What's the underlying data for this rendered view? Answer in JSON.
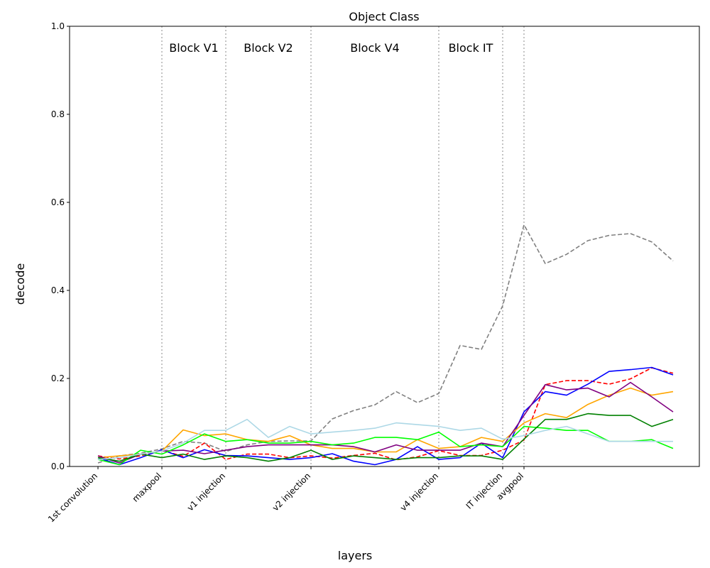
{
  "chart_data": {
    "type": "line",
    "title": "Object Class",
    "xlabel": "layers",
    "ylabel": "decode",
    "ylim": [
      0,
      1
    ],
    "y_ticks": [
      "0.0",
      "0.2",
      "0.4",
      "0.6",
      "0.8",
      "1.0"
    ],
    "y_tick_values": [
      0,
      0.2,
      0.4,
      0.6,
      0.8,
      1.0
    ],
    "x_count": 28,
    "x_tick_labels": [
      {
        "index": 0,
        "label": "1st convolution"
      },
      {
        "index": 3,
        "label": "maxpool"
      },
      {
        "index": 6,
        "label": "v1 injection"
      },
      {
        "index": 10,
        "label": "v2 injection"
      },
      {
        "index": 16,
        "label": "v4 injection"
      },
      {
        "index": 19,
        "label": "IT injection"
      },
      {
        "index": 20,
        "label": "avgpool"
      }
    ],
    "block_dividers": [
      3,
      6,
      10,
      16,
      19,
      20
    ],
    "block_labels": [
      {
        "label": "Block V1",
        "index": 4.5
      },
      {
        "label": "Block V2",
        "index": 8.0
      },
      {
        "label": "Block V4",
        "index": 13.0
      },
      {
        "label": "Block IT",
        "index": 17.5
      }
    ],
    "grid": false,
    "series": [
      {
        "color": "#808080",
        "dashed": true,
        "values": [
          0.008,
          0.024,
          0.03,
          0.04,
          0.057,
          0.053,
          0.034,
          0.049,
          0.057,
          0.058,
          0.058,
          0.108,
          0.127,
          0.14,
          0.17,
          0.145,
          0.166,
          0.275,
          0.266,
          0.365,
          0.549,
          0.461,
          0.482,
          0.513,
          0.525,
          0.529,
          0.51,
          0.467
        ]
      },
      {
        "color": "#ff0000",
        "dashed": true,
        "values": [
          0.024,
          0.017,
          0.024,
          0.037,
          0.023,
          0.053,
          0.016,
          0.028,
          0.028,
          0.02,
          0.024,
          0.019,
          0.025,
          0.03,
          0.015,
          0.022,
          0.036,
          0.025,
          0.025,
          0.037,
          0.06,
          0.186,
          0.195,
          0.195,
          0.187,
          0.199,
          0.224,
          0.212
        ]
      },
      {
        "color": "#0000ff",
        "dashed": false,
        "values": [
          0.02,
          0.004,
          0.02,
          0.038,
          0.02,
          0.038,
          0.025,
          0.024,
          0.02,
          0.016,
          0.02,
          0.029,
          0.012,
          0.004,
          0.016,
          0.045,
          0.016,
          0.02,
          0.053,
          0.02,
          0.124,
          0.17,
          0.162,
          0.187,
          0.216,
          0.22,
          0.225,
          0.208
        ]
      },
      {
        "color": "#ffa500",
        "dashed": false,
        "values": [
          0.02,
          0.024,
          0.028,
          0.035,
          0.083,
          0.07,
          0.074,
          0.061,
          0.057,
          0.07,
          0.049,
          0.041,
          0.041,
          0.033,
          0.033,
          0.061,
          0.041,
          0.045,
          0.066,
          0.057,
          0.099,
          0.12,
          0.111,
          0.141,
          0.162,
          0.178,
          0.162,
          0.17
        ]
      },
      {
        "color": "#800080",
        "dashed": false,
        "values": [
          0.024,
          0.008,
          0.028,
          0.035,
          0.037,
          0.029,
          0.037,
          0.045,
          0.049,
          0.049,
          0.049,
          0.049,
          0.045,
          0.033,
          0.049,
          0.037,
          0.037,
          0.037,
          0.053,
          0.045,
          0.116,
          0.186,
          0.174,
          0.178,
          0.158,
          0.191,
          0.158,
          0.124
        ]
      },
      {
        "color": "#00ff00",
        "dashed": false,
        "values": [
          0.016,
          0.004,
          0.037,
          0.028,
          0.049,
          0.074,
          0.057,
          0.061,
          0.053,
          0.053,
          0.057,
          0.049,
          0.053,
          0.066,
          0.066,
          0.061,
          0.078,
          0.045,
          0.049,
          0.045,
          0.091,
          0.087,
          0.082,
          0.082,
          0.057,
          0.057,
          0.061,
          0.041
        ]
      },
      {
        "color": "#008000",
        "dashed": false,
        "values": [
          0.02,
          0.012,
          0.028,
          0.02,
          0.028,
          0.016,
          0.024,
          0.02,
          0.012,
          0.02,
          0.037,
          0.016,
          0.024,
          0.02,
          0.016,
          0.02,
          0.02,
          0.024,
          0.024,
          0.016,
          0.062,
          0.107,
          0.107,
          0.12,
          0.116,
          0.116,
          0.091,
          0.107
        ]
      },
      {
        "color": "#add8e6",
        "dashed": false,
        "values": [
          0.016,
          0.02,
          0.028,
          0.035,
          0.053,
          0.082,
          0.082,
          0.107,
          0.066,
          0.091,
          0.074,
          0.078,
          0.082,
          0.087,
          0.099,
          0.095,
          0.091,
          0.082,
          0.087,
          0.062,
          0.07,
          0.082,
          0.091,
          0.074,
          0.057,
          0.057,
          0.057,
          0.057
        ]
      }
    ]
  }
}
